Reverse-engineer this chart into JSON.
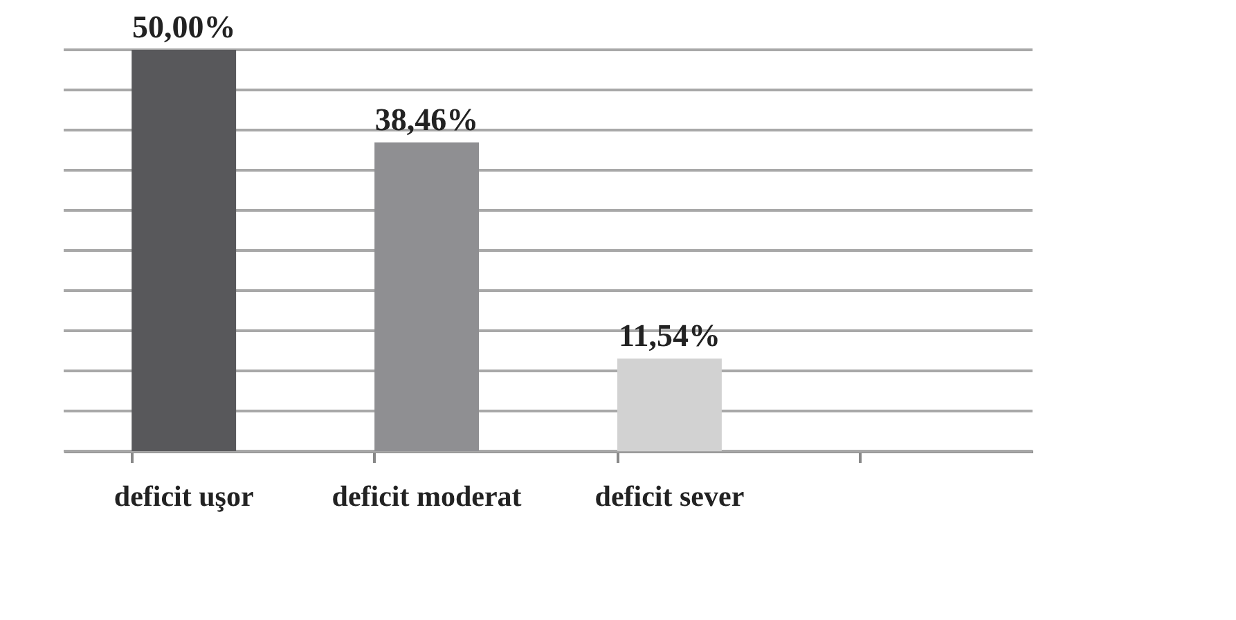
{
  "chart_data": {
    "type": "bar",
    "categories": [
      "deficit uşor",
      "deficit moderat",
      "deficit sever",
      null
    ],
    "values": [
      50,
      38.46,
      11.54,
      null
    ],
    "colors": [
      "#58585b",
      "#8f8f92",
      "#d2d2d2",
      "#d2d2d2"
    ],
    "value_labels": [
      "50,00%",
      "38,46%",
      "11,54%",
      null
    ],
    "ylim": [
      0,
      50
    ],
    "yticks": [
      {
        "value": 0,
        "label": null
      },
      {
        "value": 5,
        "label": null
      },
      {
        "value": 10,
        "label": null
      },
      {
        "value": 15,
        "label": null
      },
      {
        "value": 20,
        "label": null
      },
      {
        "value": 25,
        "label": null
      },
      {
        "value": 30,
        "label": null
      },
      {
        "value": 35,
        "label": null
      },
      {
        "value": 40,
        "label": null
      },
      {
        "value": 45,
        "label": null
      },
      {
        "value": 50,
        "label": null
      }
    ],
    "grid": "y",
    "tick_labels": "x"
  }
}
